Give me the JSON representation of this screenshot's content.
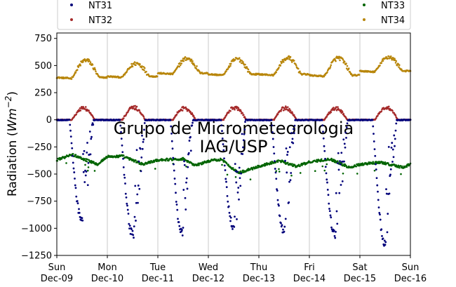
{
  "chart_data": {
    "type": "scatter",
    "ylabel": "Radiation (Wm⁻²)",
    "ylabel_main": "Radiation (",
    "ylabel_unit": "Wm",
    "ylabel_exp": "−2",
    "ylabel_close": ")",
    "ylim": [
      -1250,
      800
    ],
    "yticks": [
      -1250,
      -1000,
      -750,
      -500,
      -250,
      0,
      250,
      500,
      750
    ],
    "xlim": [
      0,
      7
    ],
    "xticks": [
      {
        "day": 0,
        "weekday": "Sun",
        "date": "Dec-09"
      },
      {
        "day": 1,
        "weekday": "Mon",
        "date": "Dec-10"
      },
      {
        "day": 2,
        "weekday": "Tue",
        "date": "Dec-11"
      },
      {
        "day": 3,
        "weekday": "Wed",
        "date": "Dec-12"
      },
      {
        "day": 4,
        "weekday": "Thu",
        "date": "Dec-13"
      },
      {
        "day": 5,
        "weekday": "Fri",
        "date": "Dec-14"
      },
      {
        "day": 6,
        "weekday": "Sat",
        "date": "Dec-15"
      },
      {
        "day": 7,
        "weekday": "Sun",
        "date": "Dec-16"
      }
    ],
    "grid": "vertical",
    "legend_position": "top",
    "watermark": [
      "Grupo de Micrometeorologia",
      "IAG/USP"
    ],
    "series": [
      {
        "name": "NT31",
        "color": "#00007a",
        "daily_min": [
          -950,
          -1100,
          -1100,
          -1030,
          -1050,
          -1100,
          -1170
        ],
        "day_start": [
          0.25,
          0.25,
          0.25,
          0.25,
          0.25,
          0.25,
          0.25
        ],
        "day_end": [
          0.73,
          0.75,
          0.7,
          0.74,
          0.72,
          0.76,
          0.73
        ]
      },
      {
        "name": "NT32",
        "color": "#a52a2a",
        "daily_max": [
          120,
          125,
          120,
          125,
          120,
          115,
          125
        ]
      },
      {
        "name": "NT33",
        "color": "#006400",
        "points": [
          [
            0,
            -370
          ],
          [
            0.3,
            -320
          ],
          [
            0.8,
            -410
          ],
          [
            1.0,
            -340
          ],
          [
            1.3,
            -335
          ],
          [
            1.7,
            -410
          ],
          [
            2.0,
            -370
          ],
          [
            2.5,
            -360
          ],
          [
            2.75,
            -420
          ],
          [
            3.0,
            -380
          ],
          [
            3.25,
            -365
          ],
          [
            3.6,
            -490
          ],
          [
            4.0,
            -430
          ],
          [
            4.4,
            -375
          ],
          [
            4.75,
            -430
          ],
          [
            5.0,
            -390
          ],
          [
            5.4,
            -360
          ],
          [
            5.8,
            -440
          ],
          [
            6.0,
            -410
          ],
          [
            6.4,
            -390
          ],
          [
            6.85,
            -440
          ],
          [
            7.0,
            -410
          ]
        ]
      },
      {
        "name": "NT34",
        "color": "#b8860b",
        "daily_base": [
          390,
          400,
          430,
          420,
          420,
          410,
          450
        ],
        "daily_peak": [
          550,
          520,
          565,
          560,
          570,
          570,
          580
        ]
      }
    ]
  }
}
